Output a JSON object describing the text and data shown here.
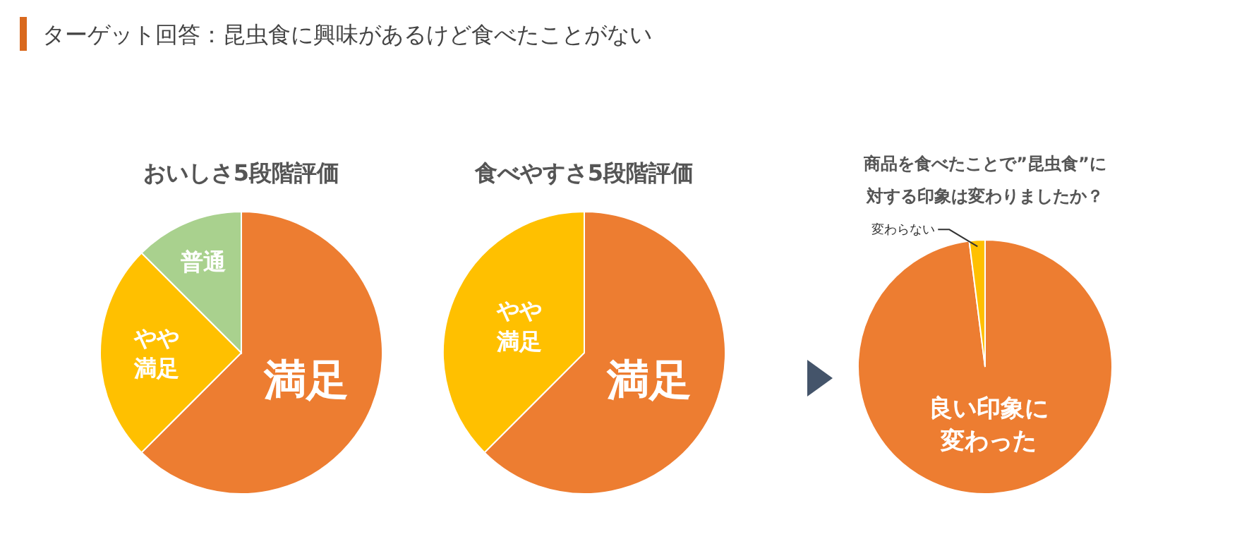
{
  "chart_data": [
    {
      "type": "other",
      "title": "ターゲット回答：昆虫食に興味があるけど食べたことがない"
    },
    {
      "type": "pie",
      "title": "おいしさ5段階評価",
      "categories": [
        "満足",
        "やや満足",
        "普通"
      ],
      "values": [
        62.5,
        25,
        12.5
      ],
      "colors": [
        "#ed7d31",
        "#ffc000",
        "#a9d18e"
      ]
    },
    {
      "type": "pie",
      "title": "食べやすさ5段階評価",
      "categories": [
        "満足",
        "やや満足"
      ],
      "values": [
        62.5,
        37.5
      ],
      "colors": [
        "#ed7d31",
        "#ffc000"
      ]
    },
    {
      "type": "pie",
      "title": "商品を食べたことで”昆虫食”に対する印象は変わりましたか？",
      "categories": [
        "良い印象に変わった",
        "変わらない"
      ],
      "values": [
        98,
        2
      ],
      "colors": [
        "#ed7d31",
        "#ffc000"
      ]
    }
  ]
}
